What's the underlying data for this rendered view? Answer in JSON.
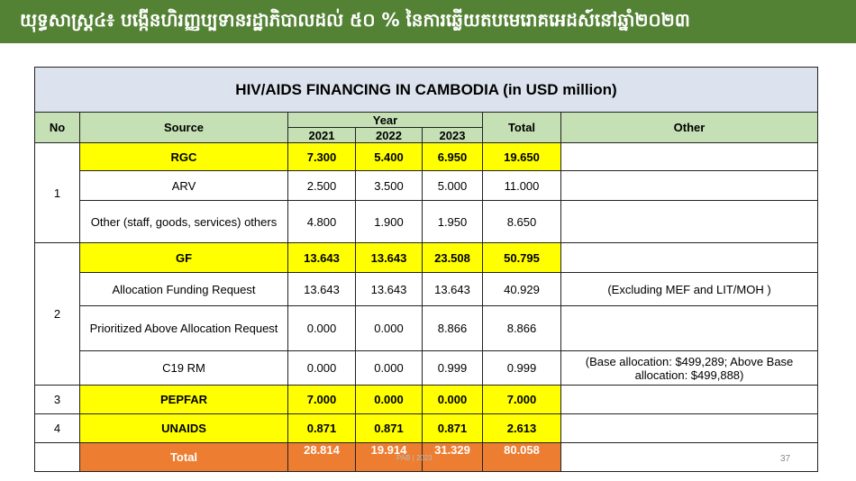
{
  "header": {
    "title": "យុទ្ធសាស្ត្រ៤៖ បង្កើនហិរញ្ញប្បទានរដ្ឋាភិបាលដល់ ៥០ % នៃការឆ្លើយតបមេរោគអេដស៍នៅឆ្នាំ២០២៣"
  },
  "table": {
    "title": "HIV/AIDS FINANCING IN CAMBODIA (in USD million)",
    "header": {
      "no": "No",
      "source": "Source",
      "year": "Year",
      "years": [
        "2021",
        "2022",
        "2023"
      ],
      "total": "Total",
      "other": "Other"
    },
    "groups": [
      {
        "no": "1",
        "rows": [
          {
            "source": "RGC",
            "values": [
              "7.300",
              "5.400",
              "6.950",
              "19.650"
            ]
          },
          {
            "source": "ARV",
            "values": [
              "2.500",
              "3.500",
              "5.000",
              "11.000"
            ]
          },
          {
            "source": "Other (staff, goods, services) others",
            "values": [
              "4.800",
              "1.900",
              "1.950",
              "8.650"
            ]
          }
        ]
      },
      {
        "no": "2",
        "rows": [
          {
            "source": "GF",
            "values": [
              "13.643",
              "13.643",
              "23.508",
              "50.795"
            ]
          },
          {
            "source": "Allocation Funding Request",
            "values": [
              "13.643",
              "13.643",
              "13.643",
              "40.929"
            ],
            "other": "(Excluding MEF and LIT/MOH )"
          },
          {
            "source": "Prioritized Above Allocation Request",
            "values": [
              "0.000",
              "0.000",
              "8.866",
              "8.866"
            ]
          },
          {
            "source": "C19 RM",
            "values": [
              "0.000",
              "0.000",
              "0.999",
              "0.999"
            ],
            "other": "(Base allocation: $499,289; Above Base allocation: $499,888)"
          }
        ]
      },
      {
        "no": "3",
        "rows": [
          {
            "source": "PEPFAR",
            "values": [
              "7.000",
              "0.000",
              "0.000",
              "7.000"
            ]
          }
        ]
      },
      {
        "no": "4",
        "rows": [
          {
            "source": "UNAIDS",
            "values": [
              "0.871",
              "0.871",
              "0.871",
              "2.613"
            ]
          }
        ]
      }
    ],
    "total": {
      "label": "Total",
      "values": [
        "28.814",
        "19.914",
        "31.329",
        "80.058"
      ]
    }
  },
  "footer": {
    "note": "PAB | 2023",
    "page": "37"
  }
}
